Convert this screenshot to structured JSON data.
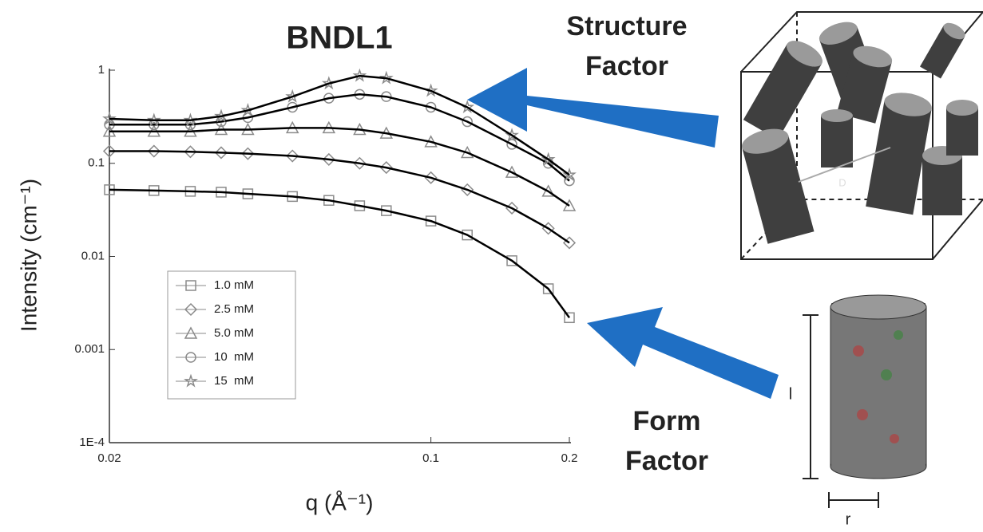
{
  "chart_data": {
    "type": "line",
    "title": "BNDL1",
    "xlabel": "q (Å⁻¹)",
    "ylabel": "Intensity (cm⁻¹)",
    "xscale": "log",
    "yscale": "log",
    "xlim": [
      0.02,
      0.2
    ],
    "xticks": [
      0.02,
      0.1,
      0.2
    ],
    "ylim": [
      0.0001,
      1
    ],
    "yticks": [
      1,
      0.1,
      0.01,
      0.001,
      {
        "value": 0.0001,
        "label": "1E-4"
      }
    ],
    "x": [
      0.02,
      0.025,
      0.03,
      0.035,
      0.04,
      0.05,
      0.06,
      0.07,
      0.08,
      0.1,
      0.12,
      0.15,
      0.18,
      0.2
    ],
    "series": [
      {
        "name": "1.0 mM",
        "marker": "square",
        "color": "#8a8a8a",
        "values": [
          0.052,
          0.051,
          0.05,
          0.049,
          0.047,
          0.044,
          0.04,
          0.035,
          0.031,
          0.024,
          0.017,
          0.009,
          0.0045,
          0.0022
        ]
      },
      {
        "name": "2.5 mM",
        "marker": "diamond",
        "color": "#8a8a8a",
        "values": [
          0.135,
          0.135,
          0.133,
          0.13,
          0.127,
          0.12,
          0.11,
          0.1,
          0.09,
          0.07,
          0.052,
          0.033,
          0.02,
          0.014
        ]
      },
      {
        "name": "5.0 mM",
        "marker": "triangle",
        "color": "#8a8a8a",
        "values": [
          0.22,
          0.22,
          0.22,
          0.23,
          0.23,
          0.24,
          0.24,
          0.23,
          0.21,
          0.17,
          0.13,
          0.08,
          0.05,
          0.035
        ]
      },
      {
        "name": "10  mM",
        "marker": "circle",
        "color": "#8a8a8a",
        "values": [
          0.26,
          0.26,
          0.26,
          0.28,
          0.31,
          0.4,
          0.5,
          0.55,
          0.52,
          0.4,
          0.28,
          0.16,
          0.1,
          0.065
        ]
      },
      {
        "name": "15  mM",
        "marker": "star",
        "color": "#8a8a8a",
        "values": [
          0.3,
          0.29,
          0.29,
          0.32,
          0.37,
          0.52,
          0.72,
          0.87,
          0.82,
          0.6,
          0.4,
          0.2,
          0.11,
          0.075
        ]
      }
    ],
    "fit_color": "#000000",
    "annotations": [
      "Structure",
      "Factor",
      "Form",
      "Factor",
      "D",
      "l",
      "r"
    ]
  }
}
